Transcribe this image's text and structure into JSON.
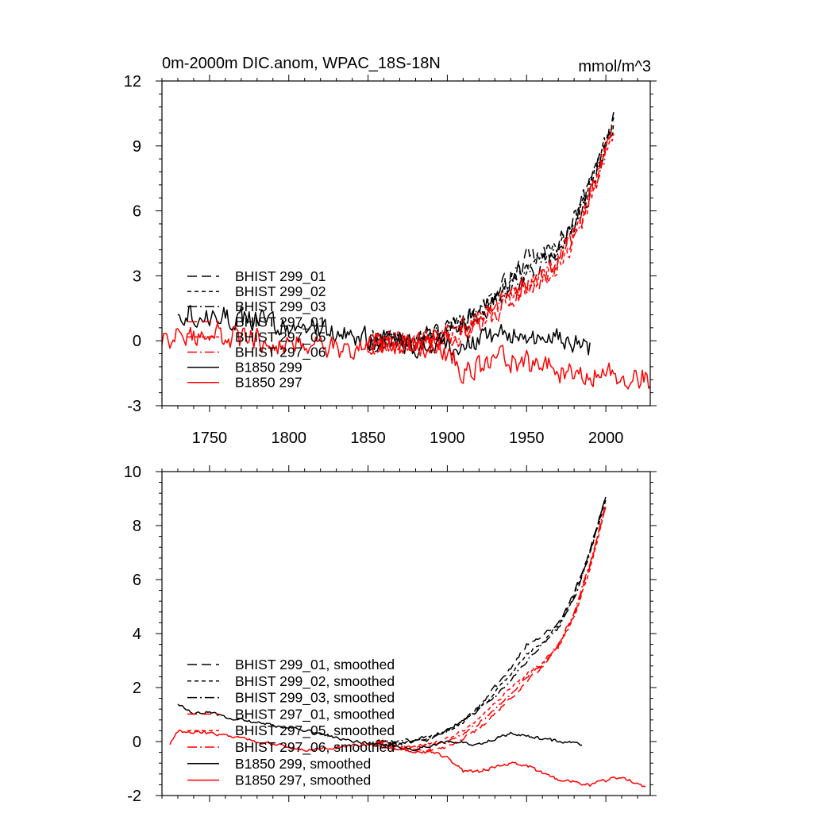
{
  "chart_data": [
    {
      "type": "line",
      "title": "0m-2000m DIC.anom, WPAC_18S-18N",
      "units": "mmol/m^3",
      "xlim": [
        1720,
        2028
      ],
      "ylim": [
        -3,
        12
      ],
      "xticks": [
        1750,
        1800,
        1850,
        1900,
        1950,
        2000
      ],
      "yticks": [
        -3,
        0,
        3,
        6,
        9,
        12
      ],
      "ytick_labels": [
        "-3",
        "0",
        "3",
        "6",
        "9",
        "12"
      ],
      "legend": [
        {
          "label": "BHIST 299_01",
          "color": "#000000",
          "dash": "long-dash"
        },
        {
          "label": "BHIST 299_02",
          "color": "#000000",
          "dash": "short-dash"
        },
        {
          "label": "BHIST 299_03",
          "color": "#000000",
          "dash": "dash-dot"
        },
        {
          "label": "BHIST 297_01",
          "color": "#ff0000",
          "dash": "long-dash"
        },
        {
          "label": "BHIST 297_05",
          "color": "#ff0000",
          "dash": "short-dash"
        },
        {
          "label": "BHIST 297_06",
          "color": "#ff0000",
          "dash": "dash-dot"
        },
        {
          "label": "B1850 299",
          "color": "#000000",
          "dash": "solid"
        },
        {
          "label": "B1850 297",
          "color": "#ff0000",
          "dash": "solid"
        }
      ],
      "series": [
        {
          "name": "BHIST 299_01",
          "color": "#000000",
          "dash": "long-dash",
          "noise": 0.45,
          "x": [
            1850,
            1870,
            1890,
            1900,
            1910,
            1920,
            1930,
            1940,
            1950,
            1960,
            1970,
            1980,
            1990,
            2000,
            2005
          ],
          "y": [
            0,
            0.1,
            0.3,
            0.6,
            0.9,
            1.4,
            2.0,
            2.9,
            3.7,
            3.9,
            4.4,
            5.5,
            7.2,
            9.2,
            10.4
          ]
        },
        {
          "name": "BHIST 299_02",
          "color": "#000000",
          "dash": "short-dash",
          "noise": 0.45,
          "x": [
            1850,
            1870,
            1890,
            1900,
            1910,
            1920,
            1930,
            1940,
            1950,
            1960,
            1970,
            1980,
            1990,
            2000,
            2005
          ],
          "y": [
            0,
            0.0,
            0.2,
            0.5,
            0.8,
            1.2,
            1.9,
            2.6,
            3.3,
            3.7,
            4.2,
            5.3,
            7.0,
            9.0,
            10.1
          ]
        },
        {
          "name": "BHIST 299_03",
          "color": "#000000",
          "dash": "dash-dot",
          "noise": 0.45,
          "x": [
            1850,
            1870,
            1890,
            1900,
            1910,
            1920,
            1930,
            1940,
            1950,
            1960,
            1970,
            1980,
            1990,
            2000,
            2005
          ],
          "y": [
            0,
            0.1,
            0.2,
            0.4,
            0.9,
            1.3,
            1.7,
            2.4,
            3.1,
            3.6,
            4.1,
            5.2,
            7.0,
            9.3,
            10.2
          ]
        },
        {
          "name": "BHIST 297_01",
          "color": "#ff0000",
          "dash": "long-dash",
          "noise": 0.45,
          "x": [
            1850,
            1870,
            1890,
            1900,
            1910,
            1920,
            1930,
            1940,
            1950,
            1960,
            1970,
            1980,
            1990,
            2000,
            2005
          ],
          "y": [
            0,
            -0.2,
            -0.1,
            0.1,
            0.3,
            0.7,
            1.2,
            1.8,
            2.4,
            2.9,
            3.6,
            4.8,
            6.6,
            8.8,
            10.0
          ]
        },
        {
          "name": "BHIST 297_05",
          "color": "#ff0000",
          "dash": "short-dash",
          "noise": 0.45,
          "x": [
            1850,
            1870,
            1890,
            1900,
            1910,
            1920,
            1930,
            1940,
            1950,
            1960,
            1970,
            1980,
            1990,
            2000,
            2005
          ],
          "y": [
            0,
            -0.1,
            0.0,
            0.3,
            0.6,
            1.0,
            1.5,
            2.1,
            2.6,
            3.0,
            3.6,
            4.7,
            6.5,
            8.8,
            9.9
          ]
        },
        {
          "name": "BHIST 297_06",
          "color": "#ff0000",
          "dash": "dash-dot",
          "noise": 0.45,
          "x": [
            1850,
            1870,
            1890,
            1900,
            1910,
            1920,
            1930,
            1940,
            1950,
            1960,
            1970,
            1980,
            1990,
            2000,
            2005
          ],
          "y": [
            0,
            -0.1,
            0.0,
            0.2,
            0.4,
            0.9,
            1.4,
            2.0,
            2.5,
            3.0,
            3.7,
            4.9,
            6.6,
            8.9,
            10.0
          ]
        },
        {
          "name": "B1850 299",
          "color": "#000000",
          "dash": "solid",
          "noise": 0.45,
          "x": [
            1730,
            1740,
            1760,
            1780,
            1800,
            1820,
            1840,
            1860,
            1880,
            1900,
            1920,
            1940,
            1960,
            1980,
            1990
          ],
          "y": [
            1.4,
            1.3,
            1.1,
            0.9,
            0.7,
            0.5,
            0.2,
            0.0,
            -0.2,
            -0.2,
            0.0,
            0.3,
            0.2,
            0.0,
            -0.3
          ]
        },
        {
          "name": "B1850 297",
          "color": "#ff0000",
          "dash": "solid",
          "noise": 0.5,
          "x": [
            1720,
            1750,
            1780,
            1800,
            1830,
            1860,
            1880,
            1900,
            1910,
            1930,
            1950,
            1970,
            1990,
            2010,
            2028
          ],
          "y": [
            0.0,
            0.3,
            0.1,
            -0.1,
            -0.3,
            -0.2,
            -0.4,
            -0.6,
            -1.3,
            -0.9,
            -1.0,
            -1.4,
            -1.5,
            -1.5,
            -1.8
          ]
        }
      ]
    },
    {
      "type": "line",
      "xlim": [
        1720,
        2028
      ],
      "ylim": [
        -2,
        10
      ],
      "xticks": [
        1750,
        1800,
        1850,
        1900,
        1950,
        2000
      ],
      "yticks": [
        -2,
        0,
        2,
        4,
        6,
        8,
        10
      ],
      "ytick_labels": [
        "-2",
        "0",
        "2",
        "4",
        "6",
        "8",
        "10"
      ],
      "legend": [
        {
          "label": "BHIST 299_01, smoothed",
          "color": "#000000",
          "dash": "long-dash"
        },
        {
          "label": "BHIST 299_02, smoothed",
          "color": "#000000",
          "dash": "short-dash"
        },
        {
          "label": "BHIST 299_03, smoothed",
          "color": "#000000",
          "dash": "dash-dot"
        },
        {
          "label": "BHIST 297_01, smoothed",
          "color": "#ff0000",
          "dash": "long-dash"
        },
        {
          "label": "BHIST 297_05, smoothed",
          "color": "#ff0000",
          "dash": "short-dash"
        },
        {
          "label": "BHIST 297_06, smoothed",
          "color": "#ff0000",
          "dash": "dash-dot"
        },
        {
          "label": "B1850 299, smoothed",
          "color": "#000000",
          "dash": "solid"
        },
        {
          "label": "B1850 297, smoothed",
          "color": "#ff0000",
          "dash": "solid"
        }
      ],
      "series": [
        {
          "name": "BHIST 299_01, smoothed",
          "color": "#000000",
          "dash": "long-dash",
          "noise": 0.06,
          "x": [
            1855,
            1870,
            1880,
            1890,
            1900,
            1910,
            1920,
            1930,
            1940,
            1950,
            1960,
            1970,
            1980,
            1990,
            2000
          ],
          "y": [
            0.0,
            -0.1,
            0.0,
            0.1,
            0.4,
            0.8,
            1.3,
            2.0,
            2.7,
            3.6,
            3.9,
            4.4,
            5.5,
            7.1,
            9.1
          ]
        },
        {
          "name": "BHIST 299_02, smoothed",
          "color": "#000000",
          "dash": "short-dash",
          "noise": 0.06,
          "x": [
            1855,
            1870,
            1880,
            1890,
            1900,
            1910,
            1920,
            1930,
            1940,
            1950,
            1960,
            1970,
            1980,
            1990,
            2000
          ],
          "y": [
            0.0,
            -0.1,
            0.0,
            0.2,
            0.4,
            0.7,
            1.2,
            1.8,
            2.5,
            3.2,
            3.7,
            4.3,
            5.4,
            7.0,
            9.0
          ]
        },
        {
          "name": "BHIST 299_03, smoothed",
          "color": "#000000",
          "dash": "dash-dot",
          "noise": 0.06,
          "x": [
            1855,
            1870,
            1880,
            1890,
            1900,
            1910,
            1920,
            1930,
            1940,
            1950,
            1960,
            1970,
            1980,
            1990,
            2000
          ],
          "y": [
            0.0,
            0.0,
            0.1,
            0.2,
            0.4,
            0.8,
            1.2,
            1.6,
            2.3,
            3.0,
            3.6,
            4.2,
            5.3,
            7.0,
            9.1
          ]
        },
        {
          "name": "BHIST 297_01, smoothed",
          "color": "#ff0000",
          "dash": "long-dash",
          "noise": 0.06,
          "x": [
            1855,
            1870,
            1880,
            1890,
            1900,
            1910,
            1920,
            1930,
            1940,
            1950,
            1960,
            1970,
            1980,
            1990,
            2000
          ],
          "y": [
            0.0,
            -0.3,
            -0.3,
            -0.3,
            -0.2,
            0.1,
            0.5,
            1.0,
            1.6,
            2.2,
            2.8,
            3.5,
            4.7,
            6.5,
            8.8
          ]
        },
        {
          "name": "BHIST 297_05, smoothed",
          "color": "#ff0000",
          "dash": "short-dash",
          "noise": 0.06,
          "x": [
            1855,
            1870,
            1880,
            1890,
            1900,
            1910,
            1920,
            1930,
            1940,
            1950,
            1960,
            1970,
            1980,
            1990,
            2000
          ],
          "y": [
            0.0,
            -0.2,
            -0.2,
            -0.1,
            0.1,
            0.4,
            0.9,
            1.4,
            2.0,
            2.5,
            2.9,
            3.5,
            4.6,
            6.4,
            8.7
          ]
        },
        {
          "name": "BHIST 297_06, smoothed",
          "color": "#ff0000",
          "dash": "dash-dot",
          "noise": 0.06,
          "x": [
            1855,
            1870,
            1880,
            1890,
            1900,
            1910,
            1920,
            1930,
            1940,
            1950,
            1960,
            1970,
            1980,
            1990,
            2000
          ],
          "y": [
            0.0,
            -0.2,
            -0.2,
            -0.1,
            0.0,
            0.3,
            0.7,
            1.2,
            1.8,
            2.4,
            2.9,
            3.6,
            4.8,
            6.6,
            8.8
          ]
        },
        {
          "name": "B1850 299, smoothed",
          "color": "#000000",
          "dash": "solid",
          "noise": 0.05,
          "x": [
            1730,
            1740,
            1750,
            1760,
            1780,
            1800,
            1820,
            1840,
            1860,
            1880,
            1900,
            1920,
            1940,
            1960,
            1985
          ],
          "y": [
            1.4,
            1.0,
            1.1,
            0.9,
            0.7,
            0.5,
            0.3,
            0.0,
            -0.1,
            -0.3,
            0.0,
            -0.1,
            0.3,
            0.1,
            -0.1
          ]
        },
        {
          "name": "B1850 297, smoothed",
          "color": "#ff0000",
          "dash": "solid",
          "noise": 0.06,
          "x": [
            1725,
            1730,
            1750,
            1770,
            1790,
            1810,
            1830,
            1850,
            1870,
            1890,
            1900,
            1910,
            1920,
            1940,
            1950,
            1970,
            1990,
            2010,
            2025
          ],
          "y": [
            -0.1,
            0.4,
            0.3,
            0.1,
            -0.1,
            -0.3,
            -0.2,
            -0.1,
            -0.3,
            -0.4,
            -0.6,
            -1.1,
            -1.1,
            -0.8,
            -0.9,
            -1.4,
            -1.6,
            -1.3,
            -1.7
          ]
        }
      ]
    }
  ]
}
